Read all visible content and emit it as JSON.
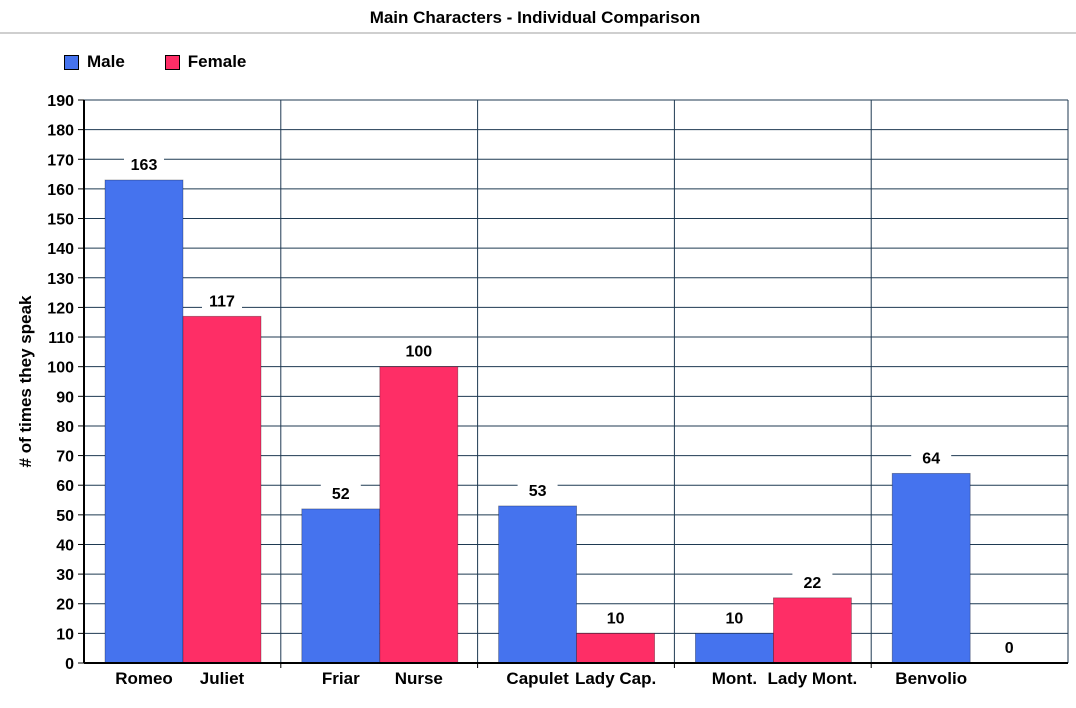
{
  "colors": {
    "male": "#4573ee",
    "female": "#fe2e66",
    "grid": "#1f3a52"
  },
  "chart_data": {
    "type": "bar",
    "title": "Main Characters - Individual Comparison",
    "ylabel": "# of times they speak",
    "xlabel": "",
    "ylim": [
      0,
      190
    ],
    "ytick_step": 10,
    "grid": true,
    "legend": "top-left",
    "series": [
      {
        "name": "Male",
        "color_key": "male"
      },
      {
        "name": "Female",
        "color_key": "female"
      }
    ],
    "groups": [
      {
        "male_label": "Romeo",
        "male_value": 163,
        "female_label": "Juliet",
        "female_value": 117
      },
      {
        "male_label": "Friar",
        "male_value": 52,
        "female_label": "Nurse",
        "female_value": 100
      },
      {
        "male_label": "Capulet",
        "male_value": 53,
        "female_label": "Lady Cap.",
        "female_value": 10
      },
      {
        "male_label": "Mont.",
        "male_value": 10,
        "female_label": "Lady Mont.",
        "female_value": 22
      },
      {
        "male_label": "Benvolio",
        "male_value": 64,
        "female_label": "",
        "female_value": 0
      }
    ]
  }
}
